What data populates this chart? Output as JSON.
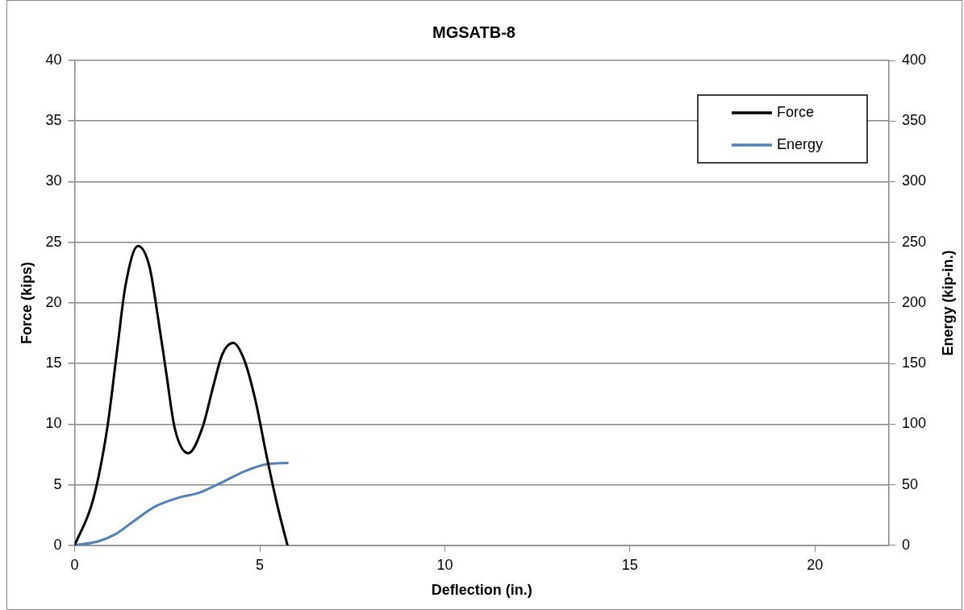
{
  "chart_data": {
    "type": "line",
    "title": "MGSATB-8",
    "xlabel": "Deflection (in.)",
    "ylabel": "Force (kips)",
    "y2label": "Energy (kip-in.)",
    "xlim": [
      0,
      22
    ],
    "xticks": [
      0,
      5,
      10,
      15,
      20
    ],
    "ylim": [
      0,
      40
    ],
    "yticks": [
      0,
      5,
      10,
      15,
      20,
      25,
      30,
      35,
      40
    ],
    "y2lim": [
      0,
      400
    ],
    "y2ticks": [
      0,
      50,
      100,
      150,
      200,
      250,
      300,
      350,
      400
    ],
    "grid": "y",
    "legend": "top right",
    "marker": "none",
    "line_style": "solid",
    "series": [
      {
        "name": "Force",
        "color": "#000000",
        "x": [
          0,
          0.5,
          0.88,
          1.15,
          1.37,
          1.71,
          2.02,
          2.24,
          2.47,
          2.7,
          3.07,
          3.45,
          3.75,
          3.98,
          4.28,
          4.58,
          4.88,
          5.19,
          5.49,
          5.75
        ],
        "values": [
          0,
          3.8,
          9.7,
          16.2,
          21.4,
          24.7,
          23,
          19,
          14.3,
          9.7,
          7.6,
          9.7,
          13.2,
          15.7,
          16.7,
          15.3,
          12,
          7.3,
          3.1,
          0
        ]
      },
      {
        "name": "Energy",
        "color": "#4f81bd",
        "axis": "y2",
        "x": [
          0,
          0.66,
          1.11,
          1.64,
          2.17,
          2.77,
          3.37,
          3.98,
          4.58,
          5.19,
          5.75
        ],
        "values": [
          0,
          3.5,
          9.4,
          21,
          32,
          39,
          43.5,
          52,
          61,
          67,
          68
        ]
      }
    ]
  }
}
